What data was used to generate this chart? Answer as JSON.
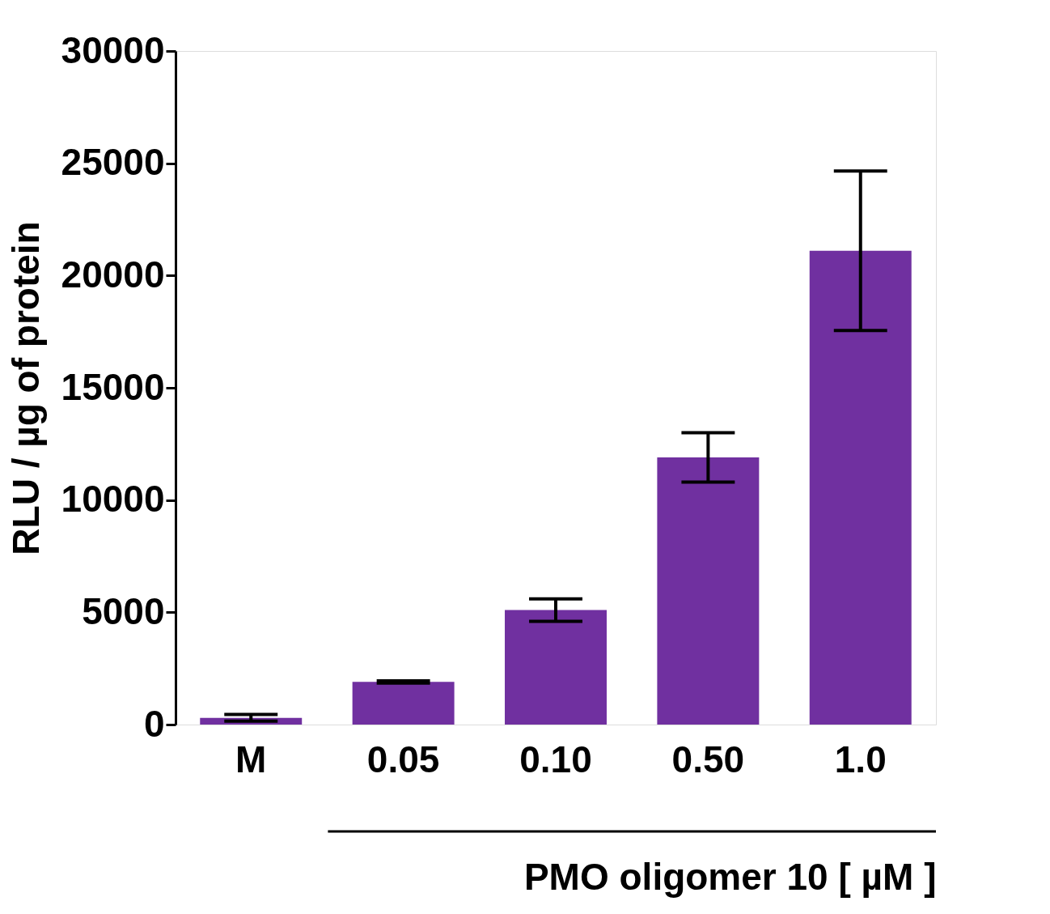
{
  "chart_data": {
    "type": "bar",
    "xlabel": "PMO oligomer 10 [ µM ]",
    "ylabel": "RLU / µg of protein",
    "categories": [
      "M",
      "0.05",
      "0.10",
      "0.50",
      "1.0"
    ],
    "values": [
      300,
      1900,
      5100,
      11900,
      21100
    ],
    "errors": [
      150,
      50,
      500,
      1100,
      3550
    ],
    "color": "#7030a0",
    "ylim": [
      0,
      30000
    ],
    "yticks": [
      0,
      5000,
      10000,
      15000,
      20000,
      25000,
      30000
    ],
    "grid": false
  }
}
